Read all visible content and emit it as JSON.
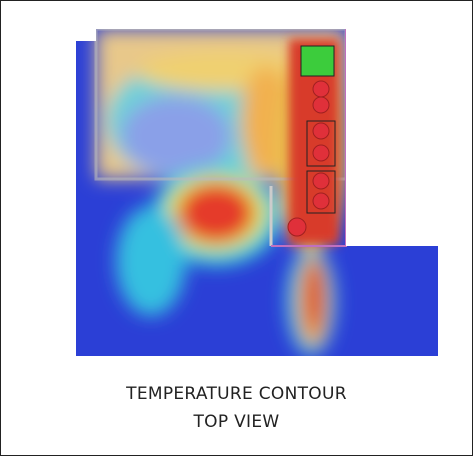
{
  "caption": {
    "line1": "TEMPERATURE CONTOUR",
    "line2": "TOP VIEW"
  }
}
